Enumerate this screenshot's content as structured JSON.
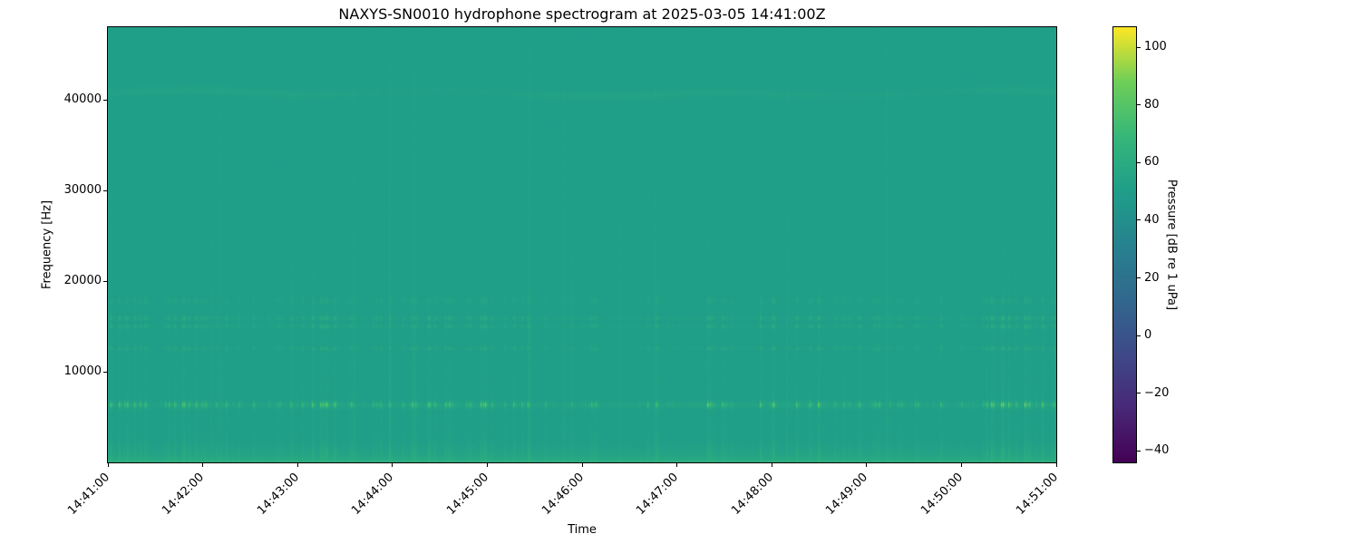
{
  "chart_data": {
    "type": "heatmap",
    "variant": "spectrogram",
    "title": "NAXYS-SN0010 hydrophone spectrogram at 2025-03-05 14:41:00Z",
    "xlabel": "Time",
    "ylabel": "Frequency [Hz]",
    "x_tick_labels": [
      "14:41:00",
      "14:42:00",
      "14:43:00",
      "14:44:00",
      "14:45:00",
      "14:46:00",
      "14:47:00",
      "14:48:00",
      "14:49:00",
      "14:50:00",
      "14:51:00"
    ],
    "y_ticks": [
      {
        "value": 10000,
        "label": "10000"
      },
      {
        "value": 20000,
        "label": "20000"
      },
      {
        "value": 30000,
        "label": "30000"
      },
      {
        "value": 40000,
        "label": "40000"
      }
    ],
    "x_range": [
      "14:41:00",
      "14:51:00"
    ],
    "y_range_hz": [
      0,
      48000
    ],
    "grid": false,
    "colorbar": {
      "label": "Pressure [dB re 1 uPa]",
      "ticks": [
        {
          "value": 100,
          "label": "100"
        },
        {
          "value": 80,
          "label": "80"
        },
        {
          "value": 60,
          "label": "60"
        },
        {
          "value": 40,
          "label": "40"
        },
        {
          "value": 20,
          "label": "20"
        },
        {
          "value": 0,
          "label": "0"
        },
        {
          "value": -20,
          "label": "−20"
        },
        {
          "value": -40,
          "label": "−40"
        }
      ],
      "vmin": -44,
      "vmax": 107,
      "colormap": "viridis",
      "position": "right"
    },
    "content": {
      "background_level_db": 51,
      "broadband_floor_boost_db_at_0hz": 11,
      "tonal_bands": [
        {
          "center_hz": 6350,
          "sigma_hz": 320,
          "peak_above_bg_db": 28
        },
        {
          "center_hz": 12550,
          "sigma_hz": 170,
          "peak_above_bg_db": 9
        },
        {
          "center_hz": 15000,
          "sigma_hz": 200,
          "peak_above_bg_db": 11
        },
        {
          "center_hz": 15900,
          "sigma_hz": 220,
          "peak_above_bg_db": 11
        },
        {
          "center_hz": 17800,
          "sigma_hz": 300,
          "peak_above_bg_db": 5
        }
      ],
      "faint_continuous_band": {
        "center_hz": 40700,
        "sigma_hz": 500,
        "peak_above_bg_db": 3
      },
      "vertical_striations": "dense broadband transient pulses across the whole record, strongest below 20 kHz, pulsing in clusters"
    },
    "viridis_stops": [
      [
        0.0,
        "#440154"
      ],
      [
        0.125,
        "#482878"
      ],
      [
        0.25,
        "#3e4989"
      ],
      [
        0.375,
        "#31688e"
      ],
      [
        0.5,
        "#26828e"
      ],
      [
        0.625,
        "#1f9e89"
      ],
      [
        0.75,
        "#35b779"
      ],
      [
        0.875,
        "#6ece58"
      ],
      [
        1.0,
        "#fde725"
      ]
    ]
  }
}
